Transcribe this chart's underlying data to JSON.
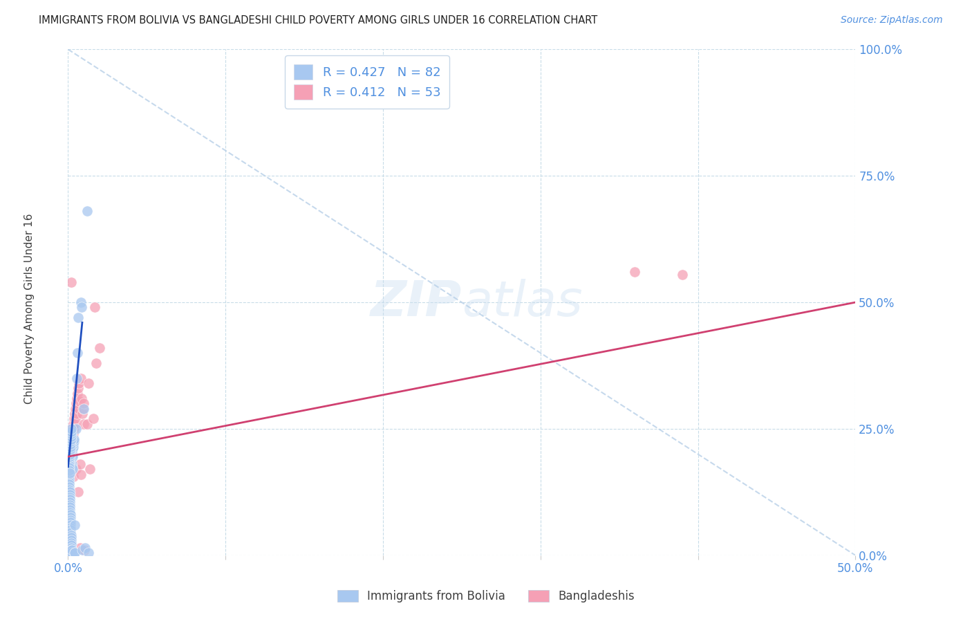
{
  "title": "IMMIGRANTS FROM BOLIVIA VS BANGLADESHI CHILD POVERTY AMONG GIRLS UNDER 16 CORRELATION CHART",
  "source": "Source: ZipAtlas.com",
  "ylabel_label": "Child Poverty Among Girls Under 16",
  "legend_labels": [
    "Immigrants from Bolivia",
    "Bangladeshis"
  ],
  "r_bolivia": 0.427,
  "n_bolivia": 82,
  "r_bangladeshi": 0.412,
  "n_bangladeshi": 53,
  "xlim": [
    0.0,
    0.5
  ],
  "ylim": [
    0.0,
    1.0
  ],
  "x_ticks": [
    0.0,
    0.1,
    0.2,
    0.3,
    0.4,
    0.5
  ],
  "y_ticks": [
    0.0,
    0.25,
    0.5,
    0.75,
    1.0
  ],
  "scatter_bolivia": [
    [
      0.0002,
      0.185
    ],
    [
      0.0003,
      0.19
    ],
    [
      0.0004,
      0.183
    ],
    [
      0.0005,
      0.178
    ],
    [
      0.0005,
      0.17
    ],
    [
      0.0006,
      0.165
    ],
    [
      0.0006,
      0.16
    ],
    [
      0.0007,
      0.155
    ],
    [
      0.0007,
      0.15
    ],
    [
      0.0008,
      0.145
    ],
    [
      0.0008,
      0.14
    ],
    [
      0.0009,
      0.135
    ],
    [
      0.0009,
      0.13
    ],
    [
      0.001,
      0.125
    ],
    [
      0.001,
      0.12
    ],
    [
      0.001,
      0.115
    ],
    [
      0.0011,
      0.11
    ],
    [
      0.0011,
      0.105
    ],
    [
      0.0012,
      0.1
    ],
    [
      0.0012,
      0.095
    ],
    [
      0.0013,
      0.09
    ],
    [
      0.0013,
      0.085
    ],
    [
      0.0014,
      0.08
    ],
    [
      0.0014,
      0.075
    ],
    [
      0.0015,
      0.07
    ],
    [
      0.0015,
      0.065
    ],
    [
      0.0016,
      0.06
    ],
    [
      0.0016,
      0.055
    ],
    [
      0.0017,
      0.05
    ],
    [
      0.0017,
      0.045
    ],
    [
      0.0018,
      0.04
    ],
    [
      0.0018,
      0.035
    ],
    [
      0.0019,
      0.03
    ],
    [
      0.002,
      0.025
    ],
    [
      0.002,
      0.02
    ],
    [
      0.0021,
      0.015
    ],
    [
      0.0021,
      0.01
    ],
    [
      0.0022,
      0.005
    ],
    [
      0.0022,
      0.0
    ],
    [
      0.0023,
      0.005
    ],
    [
      0.0024,
      0.01
    ],
    [
      0.0025,
      0.18
    ],
    [
      0.0026,
      0.175
    ],
    [
      0.0027,
      0.17
    ],
    [
      0.0028,
      0.2
    ],
    [
      0.003,
      0.195
    ],
    [
      0.0031,
      0.21
    ],
    [
      0.0033,
      0.215
    ],
    [
      0.0034,
      0.22
    ],
    [
      0.0036,
      0.225
    ],
    [
      0.0038,
      0.23
    ],
    [
      0.004,
      0.005
    ],
    [
      0.0042,
      0.005
    ],
    [
      0.0044,
      0.06
    ],
    [
      0.005,
      0.25
    ],
    [
      0.0055,
      0.35
    ],
    [
      0.006,
      0.4
    ],
    [
      0.0065,
      0.47
    ],
    [
      0.008,
      0.5
    ],
    [
      0.0085,
      0.49
    ],
    [
      0.009,
      0.01
    ],
    [
      0.011,
      0.015
    ],
    [
      0.013,
      0.005
    ],
    [
      0.01,
      0.29
    ],
    [
      0.012,
      0.68
    ],
    [
      0.0005,
      0.188
    ],
    [
      0.0006,
      0.183
    ],
    [
      0.0007,
      0.178
    ],
    [
      0.0008,
      0.173
    ],
    [
      0.0009,
      0.168
    ],
    [
      0.001,
      0.163
    ],
    [
      0.0011,
      0.195
    ],
    [
      0.0012,
      0.2
    ],
    [
      0.0013,
      0.205
    ],
    [
      0.0014,
      0.21
    ],
    [
      0.0015,
      0.215
    ],
    [
      0.0016,
      0.22
    ],
    [
      0.0017,
      0.225
    ],
    [
      0.0018,
      0.23
    ],
    [
      0.0019,
      0.235
    ],
    [
      0.002,
      0.24
    ],
    [
      0.0021,
      0.245
    ],
    [
      0.0022,
      0.25
    ]
  ],
  "scatter_bangladeshi": [
    [
      0.001,
      0.21
    ],
    [
      0.0012,
      0.195
    ],
    [
      0.0013,
      0.22
    ],
    [
      0.0015,
      0.23
    ],
    [
      0.0016,
      0.215
    ],
    [
      0.0018,
      0.225
    ],
    [
      0.0019,
      0.2
    ],
    [
      0.0021,
      0.235
    ],
    [
      0.0022,
      0.215
    ],
    [
      0.0024,
      0.24
    ],
    [
      0.0025,
      0.225
    ],
    [
      0.0027,
      0.25
    ],
    [
      0.0028,
      0.23
    ],
    [
      0.003,
      0.255
    ],
    [
      0.0032,
      0.24
    ],
    [
      0.0034,
      0.26
    ],
    [
      0.0035,
      0.155
    ],
    [
      0.0037,
      0.27
    ],
    [
      0.0039,
      0.25
    ],
    [
      0.0041,
      0.28
    ],
    [
      0.0043,
      0.26
    ],
    [
      0.0045,
      0.29
    ],
    [
      0.0047,
      0.27
    ],
    [
      0.005,
      0.3
    ],
    [
      0.0052,
      0.17
    ],
    [
      0.0055,
      0.31
    ],
    [
      0.0057,
      0.28
    ],
    [
      0.006,
      0.32
    ],
    [
      0.0062,
      0.125
    ],
    [
      0.0065,
      0.33
    ],
    [
      0.0067,
      0.29
    ],
    [
      0.007,
      0.34
    ],
    [
      0.0072,
      0.305
    ],
    [
      0.0075,
      0.18
    ],
    [
      0.0078,
      0.015
    ],
    [
      0.008,
      0.16
    ],
    [
      0.0083,
      0.35
    ],
    [
      0.0087,
      0.31
    ],
    [
      0.009,
      0.28
    ],
    [
      0.0093,
      0.29
    ],
    [
      0.0097,
      0.3
    ],
    [
      0.01,
      0.26
    ],
    [
      0.0105,
      0.01
    ],
    [
      0.012,
      0.26
    ],
    [
      0.013,
      0.34
    ],
    [
      0.014,
      0.17
    ],
    [
      0.016,
      0.27
    ],
    [
      0.017,
      0.49
    ],
    [
      0.018,
      0.38
    ],
    [
      0.02,
      0.41
    ],
    [
      0.39,
      0.555
    ],
    [
      0.0022,
      0.54
    ],
    [
      0.36,
      0.56
    ]
  ],
  "trendline_bolivia": {
    "x": [
      0.0,
      0.009
    ],
    "y": [
      0.175,
      0.46
    ]
  },
  "trendline_bangladeshi": {
    "x": [
      0.0,
      0.5
    ],
    "y": [
      0.195,
      0.5
    ]
  },
  "trendline_dashed": {
    "x": [
      0.0,
      0.5
    ],
    "y": [
      1.0,
      0.0
    ]
  },
  "color_bolivia": "#a8c8f0",
  "color_bangladeshi": "#f5a0b5",
  "color_trendline_bolivia": "#2050c0",
  "color_trendline_bangladeshi": "#d04070",
  "color_trendline_dashed": "#b8d0e8",
  "background_color": "#ffffff",
  "grid_color": "#c8dce8"
}
